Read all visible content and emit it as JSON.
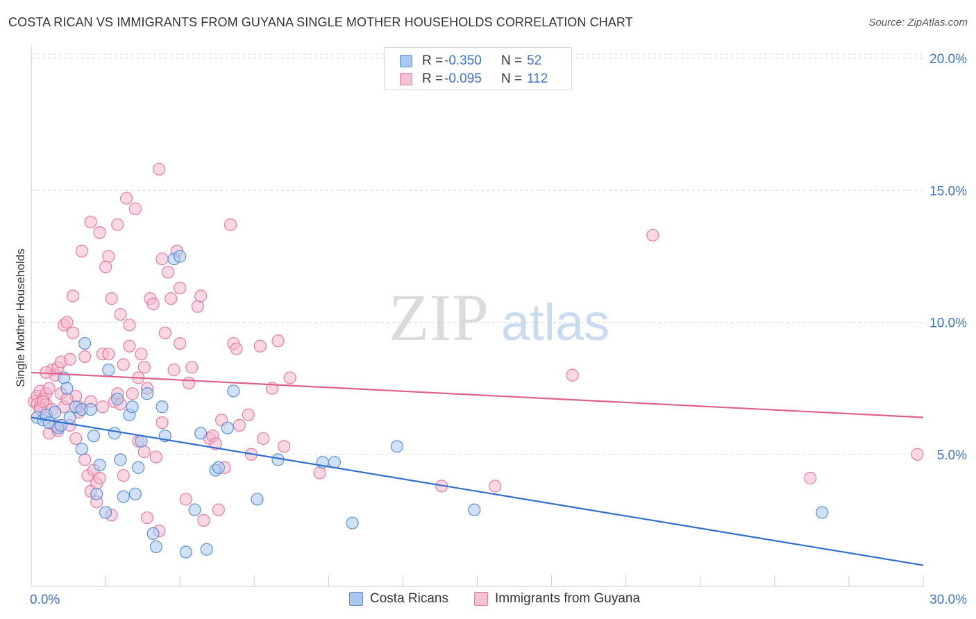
{
  "header": {
    "title": "COSTA RICAN VS IMMIGRANTS FROM GUYANA SINGLE MOTHER HOUSEHOLDS CORRELATION CHART",
    "source": "Source: ZipAtlas.com"
  },
  "watermark": {
    "zip": "ZIP",
    "atlas": "atlas"
  },
  "legend_top": {
    "rows": [
      {
        "r_label": "R =",
        "r_value": "-0.350",
        "n_label": "N =",
        "n_value": "52"
      },
      {
        "r_label": "R =",
        "r_value": "-0.095",
        "n_label": "N =",
        "n_value": "112"
      }
    ]
  },
  "legend_bottom": {
    "items": [
      {
        "label": "Costa Ricans"
      },
      {
        "label": "Immigrants from Guyana"
      }
    ]
  },
  "colors": {
    "blue_fill": "#aac8f0",
    "blue_stroke": "#5a8fd8",
    "blue_line": "#2f6fd0",
    "pink_fill": "#f5b8cc",
    "pink_stroke": "#e87aa0",
    "pink_line": "#e0608c",
    "grid": "#d9d9d9",
    "tick_text": "#3a73c8"
  },
  "chart_data": {
    "type": "scatter",
    "title": "COSTA RICAN VS IMMIGRANTS FROM GUYANA SINGLE MOTHER HOUSEHOLDS CORRELATION CHART",
    "xlabel": "",
    "ylabel": "Single Mother Households",
    "xlim": [
      0,
      30
    ],
    "ylim": [
      0,
      20.5
    ],
    "x_tick_labels": [
      "0.0%",
      "30.0%"
    ],
    "y_ticks": [
      5,
      10,
      15,
      20
    ],
    "y_tick_labels": [
      "5.0%",
      "10.0%",
      "15.0%",
      "20.0%"
    ],
    "grid": true,
    "legend_placement": "top-center",
    "series": [
      {
        "name": "Costa Ricans",
        "r": -0.35,
        "n": 52,
        "trend": [
          [
            0,
            6.4
          ],
          [
            30,
            0.8
          ]
        ],
        "points": [
          [
            0.2,
            6.4
          ],
          [
            0.4,
            6.3
          ],
          [
            0.5,
            6.5
          ],
          [
            0.6,
            6.2
          ],
          [
            0.8,
            6.6
          ],
          [
            0.9,
            6.0
          ],
          [
            1.0,
            6.1
          ],
          [
            1.1,
            7.9
          ],
          [
            1.2,
            7.5
          ],
          [
            1.3,
            6.4
          ],
          [
            1.5,
            6.8
          ],
          [
            1.7,
            6.7
          ],
          [
            1.7,
            5.2
          ],
          [
            1.8,
            9.2
          ],
          [
            2.0,
            6.7
          ],
          [
            2.1,
            5.7
          ],
          [
            2.2,
            3.5
          ],
          [
            2.3,
            4.6
          ],
          [
            2.5,
            2.8
          ],
          [
            2.6,
            8.2
          ],
          [
            2.8,
            5.8
          ],
          [
            2.9,
            7.1
          ],
          [
            3.0,
            4.8
          ],
          [
            3.1,
            3.4
          ],
          [
            3.3,
            6.5
          ],
          [
            3.4,
            6.8
          ],
          [
            3.5,
            3.5
          ],
          [
            3.6,
            4.5
          ],
          [
            3.7,
            5.5
          ],
          [
            3.9,
            7.3
          ],
          [
            4.1,
            2.0
          ],
          [
            4.2,
            1.5
          ],
          [
            4.4,
            6.8
          ],
          [
            4.5,
            5.7
          ],
          [
            4.8,
            12.4
          ],
          [
            5.0,
            12.5
          ],
          [
            5.2,
            1.3
          ],
          [
            5.5,
            2.9
          ],
          [
            5.7,
            5.8
          ],
          [
            5.9,
            1.4
          ],
          [
            6.2,
            4.4
          ],
          [
            6.3,
            4.5
          ],
          [
            6.6,
            6.0
          ],
          [
            6.8,
            7.4
          ],
          [
            7.6,
            3.3
          ],
          [
            8.3,
            4.8
          ],
          [
            9.8,
            4.7
          ],
          [
            10.2,
            4.7
          ],
          [
            10.8,
            2.4
          ],
          [
            12.3,
            5.3
          ],
          [
            14.9,
            2.9
          ],
          [
            26.6,
            2.8
          ]
        ]
      },
      {
        "name": "Immigrants from Guyana",
        "r": -0.095,
        "n": 112,
        "trend": [
          [
            0,
            8.1
          ],
          [
            30,
            6.4
          ]
        ],
        "points": [
          [
            0.1,
            7.0
          ],
          [
            0.2,
            7.2
          ],
          [
            0.2,
            6.9
          ],
          [
            0.3,
            6.8
          ],
          [
            0.3,
            7.4
          ],
          [
            0.4,
            7.1
          ],
          [
            0.5,
            6.9
          ],
          [
            0.5,
            7.3
          ],
          [
            0.6,
            7.5
          ],
          [
            0.6,
            5.8
          ],
          [
            0.7,
            8.2
          ],
          [
            0.8,
            8.0
          ],
          [
            0.9,
            8.3
          ],
          [
            0.9,
            5.9
          ],
          [
            1.0,
            8.5
          ],
          [
            1.0,
            7.3
          ],
          [
            1.1,
            9.9
          ],
          [
            1.1,
            6.8
          ],
          [
            1.2,
            10.0
          ],
          [
            1.3,
            8.6
          ],
          [
            1.3,
            6.1
          ],
          [
            1.4,
            11.0
          ],
          [
            1.5,
            7.2
          ],
          [
            1.5,
            5.6
          ],
          [
            1.6,
            6.8
          ],
          [
            1.7,
            12.7
          ],
          [
            1.8,
            8.7
          ],
          [
            1.8,
            4.8
          ],
          [
            1.9,
            4.2
          ],
          [
            2.0,
            13.8
          ],
          [
            2.0,
            7.0
          ],
          [
            2.1,
            4.4
          ],
          [
            2.2,
            3.9
          ],
          [
            2.2,
            3.2
          ],
          [
            2.3,
            13.4
          ],
          [
            2.3,
            4.1
          ],
          [
            2.4,
            8.8
          ],
          [
            2.5,
            12.1
          ],
          [
            2.6,
            12.5
          ],
          [
            2.7,
            10.9
          ],
          [
            2.7,
            2.7
          ],
          [
            2.8,
            7.0
          ],
          [
            2.9,
            13.7
          ],
          [
            2.9,
            7.3
          ],
          [
            3.0,
            10.3
          ],
          [
            3.1,
            8.4
          ],
          [
            3.1,
            4.2
          ],
          [
            3.2,
            14.7
          ],
          [
            3.3,
            9.9
          ],
          [
            3.4,
            7.3
          ],
          [
            3.5,
            14.3
          ],
          [
            3.6,
            7.9
          ],
          [
            3.6,
            5.5
          ],
          [
            3.7,
            8.8
          ],
          [
            3.8,
            8.3
          ],
          [
            3.9,
            7.5
          ],
          [
            3.9,
            2.6
          ],
          [
            4.0,
            10.9
          ],
          [
            4.1,
            10.7
          ],
          [
            4.2,
            4.9
          ],
          [
            4.3,
            15.8
          ],
          [
            4.3,
            2.1
          ],
          [
            4.4,
            12.4
          ],
          [
            4.5,
            9.6
          ],
          [
            4.6,
            11.9
          ],
          [
            4.7,
            10.9
          ],
          [
            4.8,
            8.2
          ],
          [
            4.9,
            12.7
          ],
          [
            5.0,
            11.3
          ],
          [
            5.0,
            9.2
          ],
          [
            5.2,
            3.3
          ],
          [
            5.3,
            7.7
          ],
          [
            5.4,
            8.3
          ],
          [
            5.6,
            10.6
          ],
          [
            5.7,
            11.0
          ],
          [
            5.8,
            2.5
          ],
          [
            6.0,
            5.6
          ],
          [
            6.1,
            5.7
          ],
          [
            6.2,
            5.4
          ],
          [
            6.3,
            2.9
          ],
          [
            6.4,
            6.3
          ],
          [
            6.5,
            4.5
          ],
          [
            6.7,
            13.7
          ],
          [
            6.8,
            9.2
          ],
          [
            7.0,
            6.1
          ],
          [
            7.3,
            6.5
          ],
          [
            7.4,
            5.0
          ],
          [
            7.7,
            9.1
          ],
          [
            7.8,
            5.6
          ],
          [
            8.1,
            7.5
          ],
          [
            8.3,
            9.3
          ],
          [
            8.5,
            5.3
          ],
          [
            8.7,
            7.9
          ],
          [
            0.3,
            6.7
          ],
          [
            0.4,
            7.0
          ],
          [
            0.5,
            8.1
          ],
          [
            0.7,
            6.7
          ],
          [
            0.8,
            6.1
          ],
          [
            1.2,
            7.1
          ],
          [
            1.4,
            9.6
          ],
          [
            1.6,
            6.6
          ],
          [
            2.0,
            3.6
          ],
          [
            2.4,
            6.8
          ],
          [
            2.6,
            8.8
          ],
          [
            3.0,
            6.9
          ],
          [
            3.3,
            9.1
          ],
          [
            3.8,
            5.1
          ],
          [
            4.4,
            6.2
          ],
          [
            6.9,
            9.0
          ],
          [
            9.7,
            4.3
          ],
          [
            13.8,
            3.8
          ],
          [
            15.6,
            3.8
          ],
          [
            18.2,
            8.0
          ],
          [
            20.9,
            13.3
          ],
          [
            26.2,
            4.1
          ],
          [
            29.8,
            5.0
          ]
        ]
      }
    ]
  }
}
